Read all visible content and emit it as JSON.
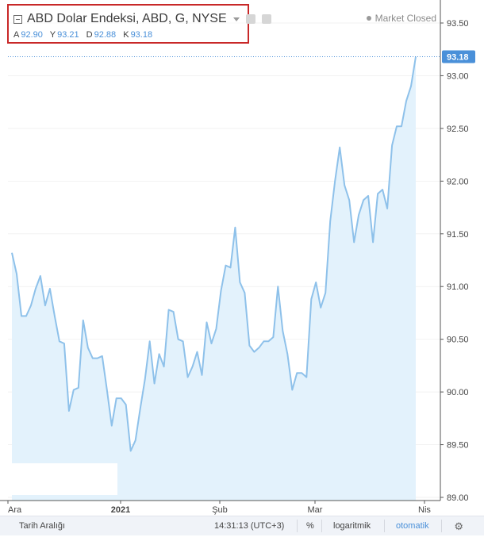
{
  "legend": {
    "title": "ABD Dolar Endeksi, ABD, G, NYSE",
    "ohlc": [
      {
        "key": "A",
        "value": "92.90"
      },
      {
        "key": "Y",
        "value": "93.21"
      },
      {
        "key": "D",
        "value": "92.88"
      },
      {
        "key": "K",
        "value": "93.18"
      }
    ],
    "market_status": "Market Closed"
  },
  "bottom_bar": {
    "date_range": "Tarih Aralığı",
    "time": "14:31:13 (UTC+3)",
    "percent": "%",
    "log": "logaritmik",
    "auto": "otomatik"
  },
  "colors": {
    "line": "#8ec1ea",
    "area": "#e3f2fc",
    "price_label_bg": "#4a90d9",
    "highlight_box": "#c82828"
  },
  "chart_data": {
    "type": "area",
    "ylim": [
      89.0,
      93.5
    ],
    "y_ticks": [
      "93.50",
      "93.00",
      "92.50",
      "92.00",
      "91.50",
      "91.00",
      "90.50",
      "90.00",
      "89.50",
      "89.00"
    ],
    "x_tick_labels": [
      "Ara",
      "2021",
      "Şub",
      "Mar",
      "Nis"
    ],
    "last_price": "93.18",
    "values": [
      91.32,
      91.12,
      90.72,
      90.72,
      90.82,
      90.98,
      91.1,
      90.82,
      90.98,
      90.72,
      90.48,
      90.46,
      89.82,
      90.02,
      90.04,
      90.68,
      90.42,
      90.32,
      90.32,
      90.34,
      90.02,
      89.68,
      89.94,
      89.94,
      89.88,
      89.44,
      89.54,
      89.84,
      90.12,
      90.48,
      90.08,
      90.36,
      90.24,
      90.78,
      90.76,
      90.5,
      90.48,
      90.14,
      90.24,
      90.38,
      90.16,
      90.66,
      90.46,
      90.6,
      90.96,
      91.2,
      91.18,
      91.56,
      91.04,
      90.94,
      90.44,
      90.38,
      90.42,
      90.48,
      90.48,
      90.52,
      91.0,
      90.58,
      90.36,
      90.02,
      90.18,
      90.18,
      90.14,
      90.88,
      91.04,
      90.8,
      90.94,
      91.62,
      92.0,
      92.32,
      91.96,
      91.82,
      91.42,
      91.68,
      91.82,
      91.86,
      91.42,
      91.88,
      91.92,
      91.74,
      92.34,
      92.52,
      92.52,
      92.76,
      92.9,
      93.18
    ]
  }
}
